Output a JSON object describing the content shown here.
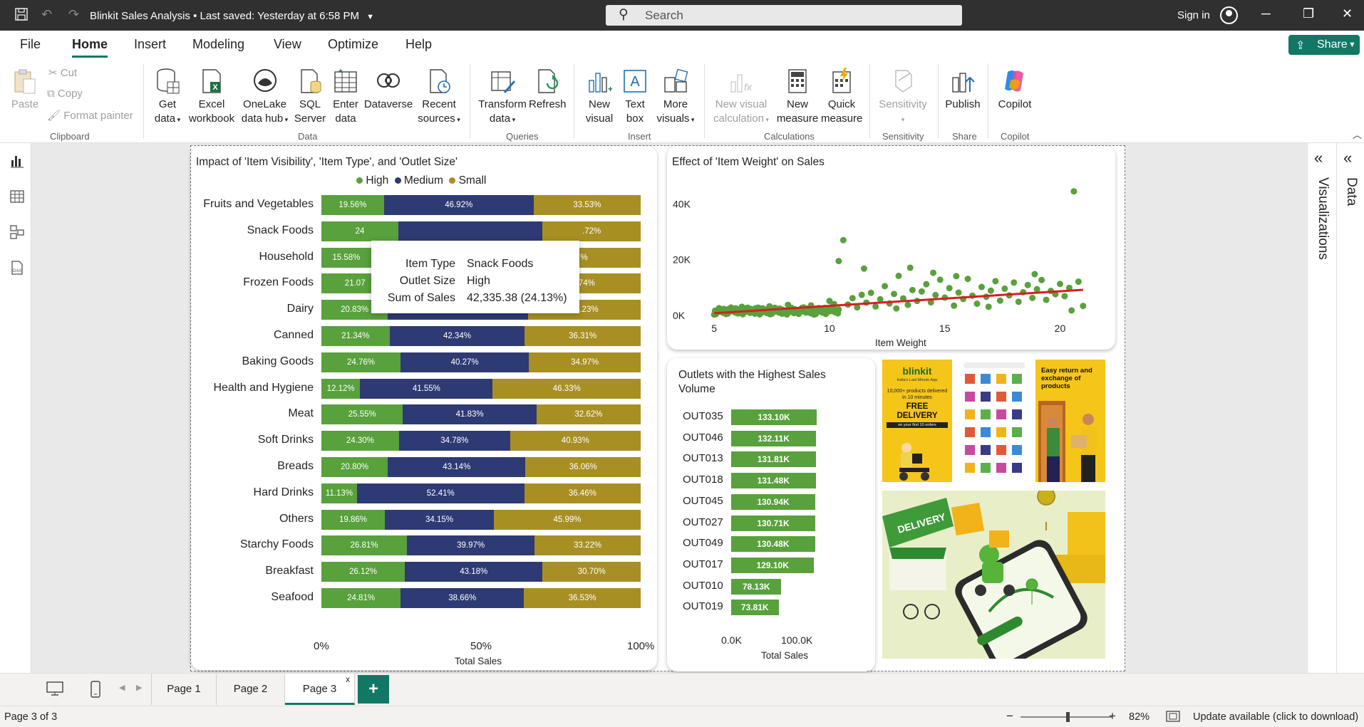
{
  "titlebar": {
    "title": "Blinkit Sales Analysis",
    "saved": "Last saved: Yesterday at 6:58 PM",
    "search_placeholder": "Search",
    "signin": "Sign in"
  },
  "menu": {
    "items": [
      "File",
      "Home",
      "Insert",
      "Modeling",
      "View",
      "Optimize",
      "Help"
    ],
    "active": "Home",
    "share": "Share"
  },
  "ribbon": {
    "clipboard": {
      "paste": "Paste",
      "cut": "Cut",
      "copy": "Copy",
      "format_painter": "Format painter",
      "group": "Clipboard"
    },
    "data": {
      "get_data": [
        "Get",
        "data"
      ],
      "excel": [
        "Excel",
        "workbook"
      ],
      "onelake": [
        "OneLake",
        "data hub"
      ],
      "sql": [
        "SQL",
        "Server"
      ],
      "enter": [
        "Enter",
        "data"
      ],
      "dataverse": [
        "Dataverse",
        ""
      ],
      "recent": [
        "Recent",
        "sources"
      ],
      "group": "Data"
    },
    "queries": {
      "transform": [
        "Transform",
        "data"
      ],
      "refresh": [
        "Refresh",
        ""
      ],
      "group": "Queries"
    },
    "insert": {
      "new_visual": [
        "New",
        "visual"
      ],
      "text_box": [
        "Text",
        "box"
      ],
      "more": [
        "More",
        "visuals"
      ],
      "group": "Insert"
    },
    "calculations": {
      "new_visual_calc": [
        "New visual",
        "calculation"
      ],
      "new_measure": [
        "New",
        "measure"
      ],
      "quick_measure": [
        "Quick",
        "measure"
      ],
      "group": "Calculations"
    },
    "sensitivity": {
      "label": [
        "Sensitivity",
        ""
      ],
      "group": "Sensitivity"
    },
    "share": {
      "publish": [
        "Publish",
        ""
      ],
      "group": "Share"
    },
    "copilot": {
      "label": [
        "Copilot",
        ""
      ],
      "group": "Copilot"
    }
  },
  "colors": {
    "high": "#58a13c",
    "medium": "#2e3a73",
    "small": "#a88f24",
    "accent": "#117865",
    "trend": "#d81e1e"
  },
  "chart_data": [
    {
      "type": "bar",
      "title": "Impact of 'Item Visibility', 'Item Type', and 'Outlet Size'",
      "xlabel": "Total Sales",
      "legend": [
        "High",
        "Medium",
        "Small"
      ],
      "ticks": [
        "0%",
        "50%",
        "100%"
      ],
      "categories": [
        "Fruits and Vegetables",
        "Snack Foods",
        "Household",
        "Frozen Foods",
        "Dairy",
        "Canned",
        "Baking Goods",
        "Health and Hygiene",
        "Meat",
        "Soft Drinks",
        "Breads",
        "Hard Drinks",
        "Others",
        "Starchy Foods",
        "Breakfast",
        "Seafood"
      ],
      "series": [
        {
          "name": "High",
          "values": [
            19.56,
            24.13,
            15.58,
            21.07,
            20.83,
            21.34,
            24.76,
            12.12,
            25.55,
            24.3,
            20.8,
            11.13,
            19.86,
            26.81,
            26.12,
            24.81
          ]
        },
        {
          "name": "Medium",
          "values": [
            46.92,
            45.15,
            48.92,
            45.19,
            43.95,
            42.34,
            40.27,
            41.55,
            41.83,
            34.78,
            43.14,
            52.41,
            34.15,
            39.97,
            43.18,
            38.66
          ]
        },
        {
          "name": "Small",
          "values": [
            33.53,
            30.72,
            35.5,
            33.74,
            35.23,
            36.31,
            34.97,
            46.33,
            32.62,
            40.93,
            36.06,
            36.46,
            45.99,
            33.22,
            30.7,
            36.53
          ]
        }
      ],
      "labels": {
        "High": [
          "19.56%",
          "24",
          "15.58%",
          "21.07",
          "20.83%",
          "21.34%",
          "24.76%",
          "12.12%",
          "25.55%",
          "24.30%",
          "20.80%",
          "11.13%",
          "19.86%",
          "26.81%",
          "26.12%",
          "24.81%"
        ],
        "Medium": [
          "46.92%",
          "",
          "",
          "",
          "43.95%",
          "42.34%",
          "40.27%",
          "41.55%",
          "41.83%",
          "34.78%",
          "43.14%",
          "52.41%",
          "34.15%",
          "39.97%",
          "43.18%",
          "38.66%"
        ],
        "Small": [
          "33.53%",
          ".72%",
          "%",
          "74%",
          "35.23%",
          "36.31%",
          "34.97%",
          "46.33%",
          "32.62%",
          "40.93%",
          "36.06%",
          "36.46%",
          "45.99%",
          "33.22%",
          "30.70%",
          "36.53%"
        ]
      }
    },
    {
      "type": "scatter",
      "title": "Effect of 'Item Weight' on Sales",
      "xlabel": "Item Weight",
      "x_ticks": [
        5,
        10,
        15,
        20
      ],
      "y_ticks": [
        "0K",
        "20K",
        "40K"
      ],
      "xlim": [
        4.5,
        21.5
      ],
      "ylim": [
        0,
        48000
      ],
      "trend": [
        [
          5,
          800
        ],
        [
          21,
          9200
        ]
      ],
      "points": [
        [
          5.1,
          900
        ],
        [
          5.3,
          1500
        ],
        [
          5.6,
          2200
        ],
        [
          5.9,
          1100
        ],
        [
          6.2,
          3100
        ],
        [
          6.5,
          1800
        ],
        [
          6.8,
          2600
        ],
        [
          7.1,
          1200
        ],
        [
          7.4,
          3300
        ],
        [
          7.7,
          2100
        ],
        [
          8.0,
          1700
        ],
        [
          8.3,
          2800
        ],
        [
          8.6,
          1400
        ],
        [
          8.9,
          2400
        ],
        [
          9.2,
          3600
        ],
        [
          9.5,
          1900
        ],
        [
          9.8,
          2700
        ],
        [
          10.0,
          5200
        ],
        [
          10.2,
          4100
        ],
        [
          10.4,
          19500
        ],
        [
          10.6,
          27000
        ],
        [
          10.8,
          3900
        ],
        [
          11.0,
          6200
        ],
        [
          11.2,
          2900
        ],
        [
          11.4,
          7400
        ],
        [
          11.6,
          4600
        ],
        [
          11.8,
          8100
        ],
        [
          12.0,
          3200
        ],
        [
          12.2,
          5800
        ],
        [
          12.4,
          10500
        ],
        [
          12.6,
          4300
        ],
        [
          12.8,
          7700
        ],
        [
          13.0,
          14200
        ],
        [
          13.2,
          6100
        ],
        [
          13.4,
          3800
        ],
        [
          13.6,
          9100
        ],
        [
          13.8,
          5200
        ],
        [
          14.0,
          8600
        ],
        [
          14.2,
          11200
        ],
        [
          14.4,
          4700
        ],
        [
          14.6,
          7300
        ],
        [
          14.8,
          12800
        ],
        [
          15.0,
          6400
        ],
        [
          15.2,
          9800
        ],
        [
          15.4,
          3500
        ],
        [
          15.6,
          8200
        ],
        [
          15.8,
          5900
        ],
        [
          16.0,
          13100
        ],
        [
          16.2,
          7100
        ],
        [
          16.4,
          4200
        ],
        [
          16.6,
          10200
        ],
        [
          16.8,
          6700
        ],
        [
          17.0,
          8900
        ],
        [
          17.2,
          12300
        ],
        [
          17.4,
          5300
        ],
        [
          17.6,
          9600
        ],
        [
          17.8,
          7200
        ],
        [
          18.0,
          11800
        ],
        [
          18.2,
          4900
        ],
        [
          18.4,
          8300
        ],
        [
          18.6,
          10900
        ],
        [
          18.8,
          6300
        ],
        [
          19.0,
          9400
        ],
        [
          19.2,
          12700
        ],
        [
          19.4,
          5600
        ],
        [
          19.6,
          8800
        ],
        [
          19.8,
          7600
        ],
        [
          20.0,
          11300
        ],
        [
          20.2,
          6900
        ],
        [
          20.4,
          9900
        ],
        [
          20.6,
          44500
        ],
        [
          20.8,
          12100
        ],
        [
          21.0,
          3400
        ],
        [
          6.0,
          800
        ],
        [
          7.0,
          2500
        ],
        [
          8.2,
          3800
        ],
        [
          9.0,
          1500
        ],
        [
          11.5,
          16800
        ],
        [
          12.9,
          2500
        ],
        [
          14.5,
          15300
        ],
        [
          16.9,
          3100
        ],
        [
          18.9,
          14800
        ],
        [
          20.5,
          1800
        ],
        [
          15.5,
          14100
        ],
        [
          13.5,
          17100
        ]
      ]
    },
    {
      "type": "bar",
      "title": "Outlets with the Highest Sales Volume",
      "xlabel": "Total Sales",
      "x_ticks": [
        "0.0K",
        "100.0K"
      ],
      "xlim": [
        0,
        133100
      ],
      "categories": [
        "OUT035",
        "OUT046",
        "OUT013",
        "OUT018",
        "OUT045",
        "OUT027",
        "OUT049",
        "OUT017",
        "OUT010",
        "OUT019"
      ],
      "values": [
        133100,
        132110,
        131810,
        131480,
        130940,
        130710,
        130480,
        129100,
        78130,
        73810
      ],
      "value_labels": [
        "133.10K",
        "132.11K",
        "131.81K",
        "131.48K",
        "130.94K",
        "130.71K",
        "130.48K",
        "129.10K",
        "78.13K",
        "73.81K"
      ]
    }
  ],
  "tooltip": {
    "rows": [
      {
        "label": "Item Type",
        "value": "Snack Foods"
      },
      {
        "label": "Outlet Size",
        "value": "High"
      },
      {
        "label": "Sum of Sales",
        "value": "42,335.38 (24.13%)"
      }
    ]
  },
  "promo": {
    "blinkit_logo": "blinkit",
    "tagline": "India's Last Minute App",
    "products_line": "10,000+ products delivered in 10 minutes",
    "free_delivery": "FREE DELIVERY",
    "first_orders": "on your first 10 orders",
    "easy_return": "Easy return and exchange of products",
    "delivery_sign": "DELIVERY"
  },
  "rightpanes": {
    "visualizations": "Visualizations",
    "data": "Data"
  },
  "tabs": {
    "pages": [
      "Page 1",
      "Page 2",
      "Page 3"
    ],
    "active": "Page 3"
  },
  "status": {
    "page": "Page 3 of 3",
    "zoom": "82%",
    "update": "Update available (click to download)",
    "zoom_value": 0.82
  }
}
